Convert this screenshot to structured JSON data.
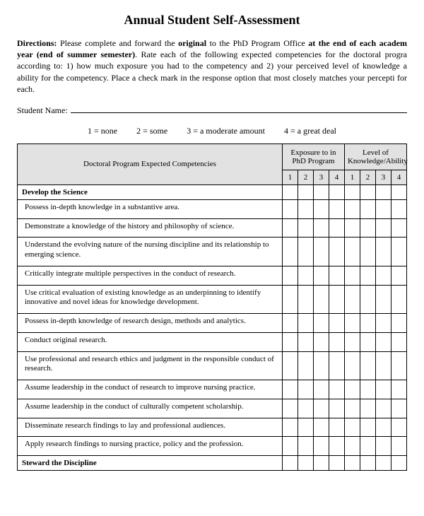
{
  "title": "Annual Student Self-Assessment",
  "directions": {
    "label": "Directions:",
    "part1": " Please complete and forward the ",
    "bold1": "original",
    "part2": " to the PhD Program Office ",
    "bold2": "at the end of each academ year (end of summer semester)",
    "part3": ". Rate each of the following expected competencies for the doctoral progra according to: 1) how much exposure you had to the competency and 2) your perceived level of knowledge a ability for the competency. Place a check mark in the response option that most closely matches your percepti for each."
  },
  "student_label": "Student Name:",
  "scale": {
    "s1": "1 = none",
    "s2": "2 = some",
    "s3": "3 = a moderate amount",
    "s4": "4 = a great deal"
  },
  "headers": {
    "competencies": "Doctoral Program Expected Competencies",
    "exposure": "Exposure to in PhD Program",
    "level": "Level of Knowledge/Ability",
    "n1": "1",
    "n2": "2",
    "n3": "3",
    "n4": "4"
  },
  "section1": "Develop the Science",
  "rows": [
    "Possess in-depth knowledge in a substantive area.",
    "Demonstrate a knowledge of the history and philosophy of science.",
    "Understand the evolving nature of the nursing discipline and its relationship to emerging science.",
    "Critically integrate multiple perspectives in the conduct of research.",
    "Use critical evaluation of existing knowledge as an underpinning to identify innovative and novel ideas for knowledge development.",
    "Possess in-depth knowledge of research design, methods and analytics.",
    "Conduct original research.",
    "Use professional and research ethics and judgment in the responsible conduct of research.",
    "Assume leadership in the conduct of research to improve nursing practice.",
    "Assume leadership in the conduct of culturally competent scholarship.",
    "Disseminate research findings to lay and professional audiences.",
    "Apply research findings to nursing practice, policy and the profession."
  ],
  "section2": "Steward the Discipline"
}
